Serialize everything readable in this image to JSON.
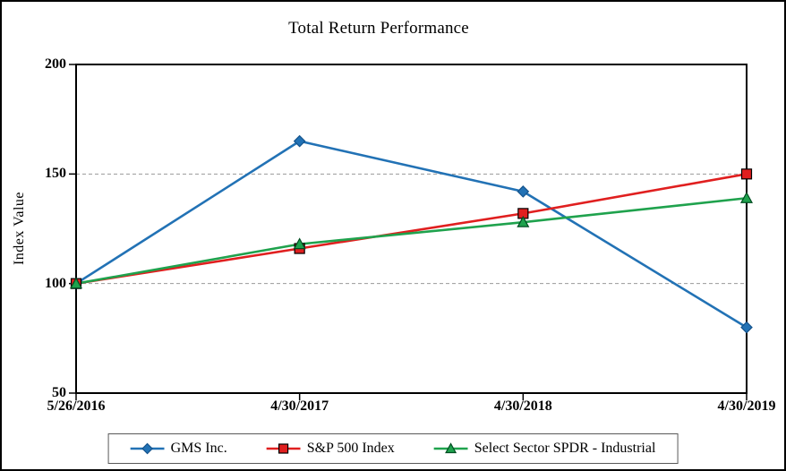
{
  "chart_data": {
    "type": "line",
    "title": "Total Return Performance",
    "xlabel": "",
    "ylabel": "Index Value",
    "categories": [
      "5/26/2016",
      "4/30/2017",
      "4/30/2018",
      "4/30/2019"
    ],
    "series": [
      {
        "name": "GMS Inc.",
        "marker": "diamond",
        "color": "#2272B5",
        "marker_stroke": "#14538C",
        "values": [
          100,
          165,
          142,
          80
        ]
      },
      {
        "name": "S&P 500 Index",
        "marker": "square",
        "color": "#E01F1F",
        "marker_stroke": "#000000",
        "values": [
          100,
          116,
          132,
          150
        ]
      },
      {
        "name": "Select Sector SPDR - Industrial",
        "marker": "triangle",
        "color": "#1FA24D",
        "marker_stroke": "#004D21",
        "values": [
          100,
          118,
          128,
          139
        ]
      }
    ],
    "ylim": [
      50,
      200
    ],
    "yticks": [
      200,
      150,
      100,
      50
    ],
    "gridlines": [
      150,
      100
    ],
    "grid": "horizontal-dashed",
    "gridline_color": "#9A9A9A",
    "axis_color": "#000000",
    "legend_position": "bottom"
  }
}
